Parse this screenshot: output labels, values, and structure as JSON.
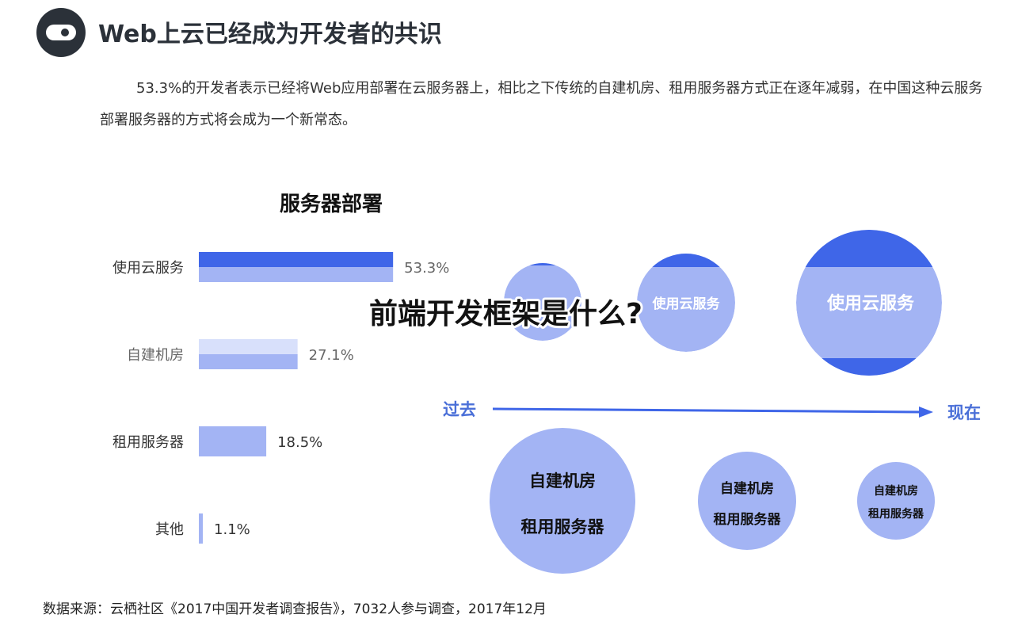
{
  "header": {
    "title": "Web上云已经成为开发者的共识",
    "intro": "53.3%的开发者表示已经将Web应用部署在云服务器上，相比之下传统的自建机房、租用服务器方式正在逐年减弱，在中国这种云服务部署服务器的方式将会成为一个新常态。"
  },
  "overlay_title": "前端开发框架是什么?",
  "source_note": "数据来源：云栖社区《2017中国开发者调查报告》，7032人参与调查，2017年12月",
  "colors": {
    "dark_blue": "#3f66e8",
    "mid_blue": "#a3b4f4",
    "light_blue": "#d8e0fb",
    "label_blue": "#4a6fd8",
    "logo": "#2b3139"
  },
  "chart_data": [
    {
      "type": "bar",
      "orientation": "horizontal",
      "title": "服务器部署",
      "categories": [
        "使用云服务",
        "自建机房",
        "租用服务器",
        "其他"
      ],
      "values": [
        53.3,
        27.1,
        18.5,
        1.1
      ],
      "value_labels": [
        "53.3%",
        "27.1%",
        "18.5%",
        "1.1%"
      ],
      "xlim": [
        0,
        100
      ]
    },
    {
      "type": "bubble",
      "axis": {
        "start_label": "过去",
        "end_label": "现在"
      },
      "top_row_label": "使用云服务",
      "bottom_row_labels": [
        [
          "自建机房",
          "租用服务器"
        ],
        [
          "自建机房",
          "租用服务器"
        ],
        [
          "自建机房",
          "租用服务器"
        ]
      ],
      "top_row_size_rank": [
        1,
        2,
        3
      ],
      "bottom_row_size_rank": [
        3,
        2,
        1
      ]
    }
  ]
}
